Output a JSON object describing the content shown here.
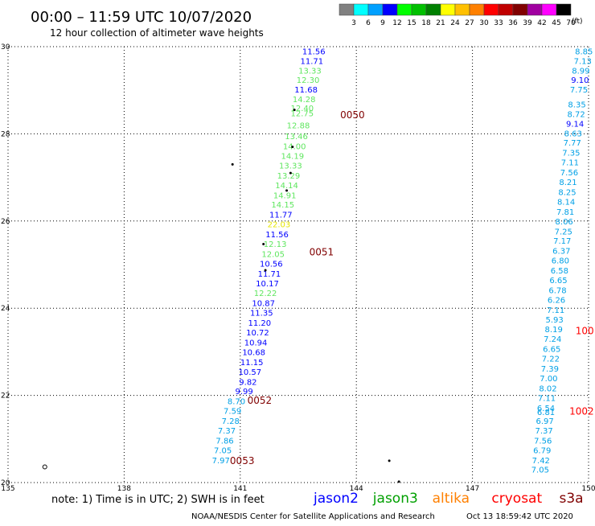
{
  "header": {
    "title": "00:00 – 11:59 UTC 10/07/2020",
    "subtitle": "12 hour collection of altimeter wave heights"
  },
  "colorbar": {
    "ticks": [
      "3",
      "6",
      "9",
      "12",
      "15",
      "18",
      "21",
      "24",
      "27",
      "30",
      "33",
      "36",
      "39",
      "42",
      "45",
      "70"
    ],
    "unit": "(ft)",
    "colors": [
      "#808080",
      "#00ffff",
      "#00a0ff",
      "#0000ff",
      "#00ff00",
      "#00c000",
      "#008000",
      "#ffff00",
      "#ffc000",
      "#ff8000",
      "#ff0000",
      "#c00000",
      "#800000",
      "#a000a0",
      "#ff00ff",
      "#000000"
    ]
  },
  "footer": {
    "note": "note:  1) Time is in UTC;  2) SWH is in feet",
    "credit": "NOAA/NESDIS Center for Satellite Applications and Research",
    "timestamp": "Oct 13 18:59:42 UTC 2020"
  },
  "legend": [
    {
      "name": "jason2",
      "color": "#0000ff"
    },
    {
      "name": "jason3",
      "color": "#00a000"
    },
    {
      "name": "altika",
      "color": "#ff8000"
    },
    {
      "name": "cryosat",
      "color": "#ff0000"
    },
    {
      "name": "s3a",
      "color": "#800000"
    }
  ],
  "chart_data": {
    "type": "scatter",
    "title": "00:00 – 11:59 UTC 10/07/2020",
    "xlim": [
      135,
      150
    ],
    "ylim": [
      20,
      30
    ],
    "x_ticks": [
      "135",
      "138",
      "141",
      "144",
      "147",
      "150"
    ],
    "y_ticks": [
      "20",
      "22",
      "24",
      "26",
      "28",
      "30"
    ],
    "grid": true,
    "series": [
      {
        "name": "track-center",
        "color": "#0000ff",
        "points": [
          {
            "x": 142.9,
            "y": 29.9,
            "label": "11.56",
            "color": "#0000ff"
          },
          {
            "x": 142.85,
            "y": 29.68,
            "label": "11.71",
            "color": "#0000ff"
          },
          {
            "x": 142.8,
            "y": 29.46,
            "label": "13.33",
            "color": "#5fe65f"
          },
          {
            "x": 142.75,
            "y": 29.24,
            "label": "12.30",
            "color": "#5fe65f"
          },
          {
            "x": 142.7,
            "y": 29.02,
            "label": "11.68",
            "color": "#0000ff"
          },
          {
            "x": 142.65,
            "y": 28.8,
            "label": "14.28",
            "color": "#5fe65f"
          },
          {
            "x": 142.6,
            "y": 28.6,
            "label": "12.40",
            "color": "#5fe65f"
          },
          {
            "x": 142.6,
            "y": 28.48,
            "label": "12.75",
            "color": "#5fe65f"
          },
          {
            "x": 142.5,
            "y": 28.2,
            "label": "12.88",
            "color": "#5fe65f"
          },
          {
            "x": 142.45,
            "y": 27.95,
            "label": "13.46",
            "color": "#5fe65f"
          },
          {
            "x": 142.4,
            "y": 27.72,
            "label": "14.00",
            "color": "#5fe65f"
          },
          {
            "x": 142.35,
            "y": 27.5,
            "label": "14.19",
            "color": "#5fe65f"
          },
          {
            "x": 142.3,
            "y": 27.28,
            "label": "13.33",
            "color": "#5fe65f"
          },
          {
            "x": 142.25,
            "y": 27.05,
            "label": "13.29",
            "color": "#5fe65f"
          },
          {
            "x": 142.2,
            "y": 26.83,
            "label": "14.14",
            "color": "#5fe65f"
          },
          {
            "x": 142.15,
            "y": 26.6,
            "label": "14.91",
            "color": "#5fe65f"
          },
          {
            "x": 142.1,
            "y": 26.38,
            "label": "14.15",
            "color": "#5fe65f"
          },
          {
            "x": 142.05,
            "y": 26.15,
            "label": "11.77",
            "color": "#0000ff"
          },
          {
            "x": 142.0,
            "y": 25.93,
            "label": "22.03",
            "color": "#e6e600"
          },
          {
            "x": 141.95,
            "y": 25.7,
            "label": "11.56",
            "color": "#0000ff"
          },
          {
            "x": 141.9,
            "y": 25.48,
            "label": "12.13",
            "color": "#5fe65f"
          },
          {
            "x": 141.85,
            "y": 25.25,
            "label": "12.05",
            "color": "#5fe65f"
          },
          {
            "x": 141.8,
            "y": 25.03,
            "label": "10.56",
            "color": "#0000ff"
          },
          {
            "x": 141.75,
            "y": 24.8,
            "label": "11.71",
            "color": "#0000ff"
          },
          {
            "x": 141.7,
            "y": 24.58,
            "label": "10.17",
            "color": "#0000ff"
          },
          {
            "x": 141.65,
            "y": 24.35,
            "label": "12.22",
            "color": "#5fe65f"
          },
          {
            "x": 141.6,
            "y": 24.12,
            "label": "10.87",
            "color": "#0000ff"
          },
          {
            "x": 141.55,
            "y": 23.9,
            "label": "11.35",
            "color": "#0000ff"
          },
          {
            "x": 141.5,
            "y": 23.67,
            "label": "11.20",
            "color": "#0000ff"
          },
          {
            "x": 141.45,
            "y": 23.45,
            "label": "10.72",
            "color": "#0000ff"
          },
          {
            "x": 141.4,
            "y": 23.22,
            "label": "10.94",
            "color": "#0000ff"
          },
          {
            "x": 141.35,
            "y": 23.0,
            "label": "10.68",
            "color": "#0000ff"
          },
          {
            "x": 141.3,
            "y": 22.77,
            "label": "11.15",
            "color": "#0000ff"
          },
          {
            "x": 141.25,
            "y": 22.55,
            "label": "10.57",
            "color": "#0000ff"
          },
          {
            "x": 141.2,
            "y": 22.32,
            "label": "9.82",
            "color": "#0000ff"
          },
          {
            "x": 141.1,
            "y": 22.1,
            "label": "9.99",
            "color": "#0000ff"
          },
          {
            "x": 140.9,
            "y": 21.87,
            "label": "8.70",
            "color": "#00a0e6"
          },
          {
            "x": 140.8,
            "y": 21.65,
            "label": "7.59",
            "color": "#00a0e6"
          },
          {
            "x": 140.75,
            "y": 21.42,
            "label": "7.28",
            "color": "#00a0e6"
          },
          {
            "x": 140.65,
            "y": 21.2,
            "label": "7.37",
            "color": "#00a0e6"
          },
          {
            "x": 140.6,
            "y": 20.97,
            "label": "7.86",
            "color": "#00a0e6"
          },
          {
            "x": 140.55,
            "y": 20.75,
            "label": "7.05",
            "color": "#00a0e6"
          },
          {
            "x": 140.5,
            "y": 20.52,
            "label": "7.97",
            "color": "#00a0e6"
          }
        ]
      },
      {
        "name": "track-right",
        "color": "#00a0e6",
        "points": [
          {
            "x": 149.88,
            "y": 29.9,
            "label": "8.85",
            "color": "#00a0e6"
          },
          {
            "x": 149.85,
            "y": 29.68,
            "label": "7.13",
            "color": "#00a0e6"
          },
          {
            "x": 149.8,
            "y": 29.46,
            "label": "8.99",
            "color": "#00a0e6"
          },
          {
            "x": 149.78,
            "y": 29.24,
            "label": "9.10",
            "color": "#0000ff"
          },
          {
            "x": 149.75,
            "y": 29.02,
            "label": "7.75",
            "color": "#00a0e6"
          },
          {
            "x": 149.7,
            "y": 28.68,
            "label": "8.35",
            "color": "#00a0e6"
          },
          {
            "x": 149.68,
            "y": 28.46,
            "label": "8.72",
            "color": "#00a0e6"
          },
          {
            "x": 149.65,
            "y": 28.24,
            "label": "9.14",
            "color": "#0000ff"
          },
          {
            "x": 149.6,
            "y": 28.02,
            "label": "8.63",
            "color": "#00a0e6"
          },
          {
            "x": 149.58,
            "y": 27.8,
            "label": "7.77",
            "color": "#00a0e6"
          },
          {
            "x": 149.55,
            "y": 27.57,
            "label": "7.35",
            "color": "#00a0e6"
          },
          {
            "x": 149.52,
            "y": 27.35,
            "label": "7.11",
            "color": "#00a0e6"
          },
          {
            "x": 149.5,
            "y": 27.12,
            "label": "7.56",
            "color": "#00a0e6"
          },
          {
            "x": 149.47,
            "y": 26.9,
            "label": "8.21",
            "color": "#00a0e6"
          },
          {
            "x": 149.45,
            "y": 26.67,
            "label": "8.25",
            "color": "#00a0e6"
          },
          {
            "x": 149.42,
            "y": 26.45,
            "label": "8.14",
            "color": "#00a0e6"
          },
          {
            "x": 149.4,
            "y": 26.22,
            "label": "7.81",
            "color": "#00a0e6"
          },
          {
            "x": 149.37,
            "y": 26.0,
            "label": "8.06",
            "color": "#00a0e6"
          },
          {
            "x": 149.35,
            "y": 25.77,
            "label": "7.25",
            "color": "#00a0e6"
          },
          {
            "x": 149.32,
            "y": 25.55,
            "label": "7.17",
            "color": "#00a0e6"
          },
          {
            "x": 149.3,
            "y": 25.32,
            "label": "6.37",
            "color": "#00a0e6"
          },
          {
            "x": 149.27,
            "y": 25.1,
            "label": "6.80",
            "color": "#00a0e6"
          },
          {
            "x": 149.25,
            "y": 24.87,
            "label": "6.58",
            "color": "#00a0e6"
          },
          {
            "x": 149.22,
            "y": 24.65,
            "label": "6.65",
            "color": "#00a0e6"
          },
          {
            "x": 149.2,
            "y": 24.42,
            "label": "6.78",
            "color": "#00a0e6"
          },
          {
            "x": 149.17,
            "y": 24.2,
            "label": "6.26",
            "color": "#00a0e6"
          },
          {
            "x": 149.15,
            "y": 23.97,
            "label": "7.11",
            "color": "#00a0e6"
          },
          {
            "x": 149.12,
            "y": 23.75,
            "label": "5.93",
            "color": "#00a0e6"
          },
          {
            "x": 149.1,
            "y": 23.52,
            "label": "8.19",
            "color": "#00a0e6"
          },
          {
            "x": 149.07,
            "y": 23.3,
            "label": "7.24",
            "color": "#00a0e6"
          },
          {
            "x": 149.05,
            "y": 23.07,
            "label": "6.65",
            "color": "#00a0e6"
          },
          {
            "x": 149.02,
            "y": 22.85,
            "label": "7.22",
            "color": "#00a0e6"
          },
          {
            "x": 149.0,
            "y": 22.62,
            "label": "7.39",
            "color": "#00a0e6"
          },
          {
            "x": 148.97,
            "y": 22.4,
            "label": "7.00",
            "color": "#00a0e6"
          },
          {
            "x": 148.95,
            "y": 22.17,
            "label": "8.02",
            "color": "#00a0e6"
          },
          {
            "x": 148.92,
            "y": 21.95,
            "label": "7.11",
            "color": "#00a0e6"
          },
          {
            "x": 148.9,
            "y": 21.72,
            "label": "6.54",
            "color": "#00a0e6"
          },
          {
            "x": 148.9,
            "y": 21.62,
            "label": "6.81",
            "color": "#00a0e6"
          },
          {
            "x": 148.87,
            "y": 21.42,
            "label": "6.97",
            "color": "#00a0e6"
          },
          {
            "x": 148.85,
            "y": 21.2,
            "label": "7.37",
            "color": "#00a0e6"
          },
          {
            "x": 148.82,
            "y": 20.97,
            "label": "7.56",
            "color": "#00a0e6"
          },
          {
            "x": 148.8,
            "y": 20.75,
            "label": "6.79",
            "color": "#00a0e6"
          },
          {
            "x": 148.77,
            "y": 20.52,
            "label": "7.42",
            "color": "#00a0e6"
          },
          {
            "x": 148.75,
            "y": 20.3,
            "label": "7.05",
            "color": "#00a0e6"
          }
        ]
      }
    ],
    "annotations": [
      {
        "text": "0050",
        "x": 143.9,
        "y": 28.45,
        "color": "#800000"
      },
      {
        "text": "0051",
        "x": 143.1,
        "y": 25.3,
        "color": "#800000"
      },
      {
        "text": "0052",
        "x": 141.5,
        "y": 21.9,
        "color": "#800000"
      },
      {
        "text": "0053",
        "x": 141.05,
        "y": 20.52,
        "color": "#800000"
      },
      {
        "text": "100",
        "x": 149.9,
        "y": 23.5,
        "color": "#ff0000"
      },
      {
        "text": "1002",
        "x": 149.82,
        "y": 21.65,
        "color": "#ff0000"
      }
    ],
    "markers": [
      {
        "x": 141.6,
        "y": 25.47
      },
      {
        "x": 141.65,
        "y": 24.87
      },
      {
        "x": 142.2,
        "y": 26.7
      },
      {
        "x": 142.3,
        "y": 27.1
      },
      {
        "x": 142.35,
        "y": 27.7
      },
      {
        "x": 142.4,
        "y": 28.55
      },
      {
        "x": 140.8,
        "y": 27.3
      },
      {
        "x": 144.85,
        "y": 20.5
      },
      {
        "x": 145.1,
        "y": 20.02
      }
    ],
    "circle_markers": [
      {
        "x": 135.95,
        "y": 20.36
      }
    ]
  }
}
